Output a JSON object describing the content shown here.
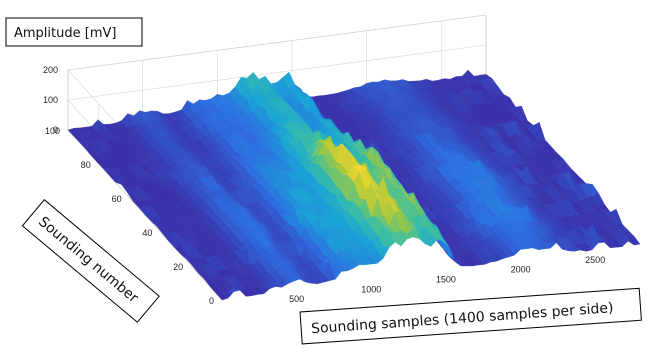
{
  "chart_data": {
    "type": "surface",
    "title": "",
    "zlabel": "Amplitude [mV]",
    "ylabel": "Sounding number",
    "xlabel": "Sounding samples (1400 samples per side)",
    "x_ticks": [
      "500",
      "1000",
      "1500",
      "2000",
      "2500"
    ],
    "y_ticks": [
      "0",
      "20",
      "40",
      "60",
      "80",
      "100"
    ],
    "z_ticks": [
      "0",
      "100",
      "200"
    ],
    "xlim": [
      0,
      2800
    ],
    "ylim": [
      0,
      100
    ],
    "zlim": [
      0,
      200
    ],
    "grid": true,
    "colormap": [
      "#3b2ea8",
      "#2d6fe0",
      "#19a4d6",
      "#3cbfa0",
      "#a8c83a",
      "#f5d630"
    ],
    "ridges": [
      {
        "x_center": 1250,
        "width": 180,
        "amplitude": 190
      },
      {
        "x_center": 1480,
        "width": 60,
        "amplitude": 120
      },
      {
        "x_center": 900,
        "width": 160,
        "amplitude": 70
      },
      {
        "x_center": 500,
        "width": 120,
        "amplitude": 40
      },
      {
        "x_center": 2100,
        "width": 220,
        "amplitude": 45
      }
    ]
  }
}
